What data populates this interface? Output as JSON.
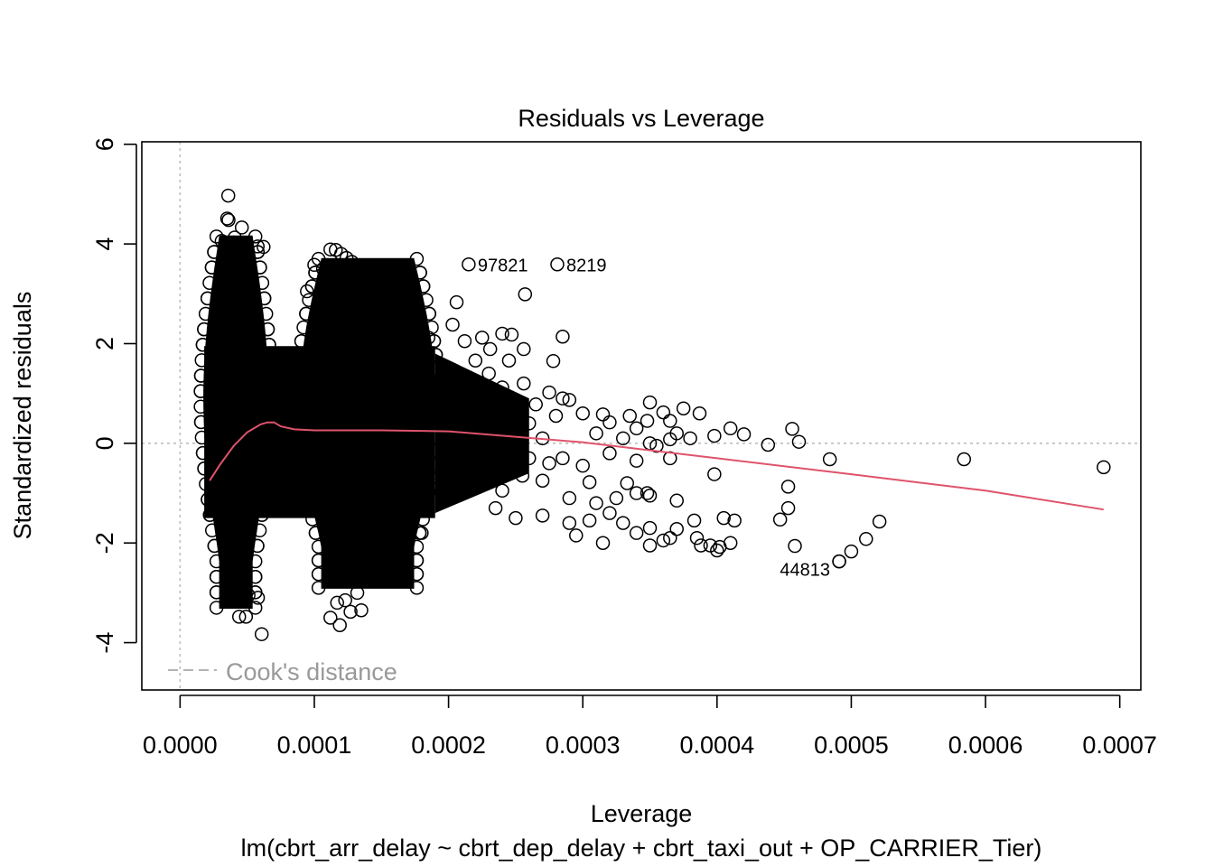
{
  "chart_data": {
    "type": "scatter",
    "title": "Residuals vs Leverage",
    "xlabel": "Leverage",
    "ylabel": "Standardized residuals",
    "subtitle": "lm(cbrt_arr_delay ~ cbrt_dep_delay + cbrt_taxi_out + OP_CARRIER_Tier)",
    "xlim": [
      -2.85e-05,
      0.0007157
    ],
    "ylim": [
      -4.95,
      6.05
    ],
    "x_ticks": [
      "0.0000",
      "0.0001",
      "0.0002",
      "0.0003",
      "0.0004",
      "0.0005",
      "0.0006",
      "0.0007"
    ],
    "x_tick_values": [
      0,
      0.0001,
      0.0002,
      0.0003,
      0.0004,
      0.0005,
      0.0006,
      0.0007
    ],
    "y_ticks": [
      "-4",
      "-2",
      "0",
      "2",
      "4",
      "6"
    ],
    "y_tick_values": [
      -4,
      -2,
      0,
      2,
      4,
      6
    ],
    "reference_lines": {
      "h": 0,
      "v": 0,
      "style": "dotted",
      "color": "#bebebe"
    },
    "legend": {
      "label": "Cook's distance",
      "position": "bottom-left",
      "line_style": "dashed",
      "color": "#999999"
    },
    "dense_clusters": [
      {
        "x_range": [
          1.8e-05,
          6.52e-05
        ],
        "y_range": [
          -3.3,
          4.15
        ]
      },
      {
        "x_range": [
          8.95e-05,
          0.00019
        ],
        "y_range": [
          -2.9,
          3.7
        ]
      }
    ],
    "points": [
      [
        3.59e-05,
        4.97
      ],
      [
        3.51e-05,
        4.51
      ],
      [
        3.61e-05,
        4.48
      ],
      [
        4.6e-05,
        4.33
      ],
      [
        4.07e-05,
        4.13
      ],
      [
        3.1e-05,
        4.06
      ],
      [
        4e-05,
        4.03
      ],
      [
        4.7e-05,
        4.0
      ],
      [
        5.78e-05,
        3.95
      ],
      [
        6.22e-05,
        3.94
      ],
      [
        0.000112,
        3.89
      ],
      [
        0.000116,
        3.88
      ],
      [
        0.00012,
        3.8
      ],
      [
        0.000124,
        3.72
      ],
      [
        0.000128,
        3.64
      ],
      [
        0.0001,
        3.58
      ],
      [
        0.0001065,
        3.5
      ],
      [
        0.000114,
        3.42
      ],
      [
        9.45e-05,
        3.05
      ],
      [
        0.000164,
        3.03
      ],
      [
        0.000136,
        2.65
      ],
      [
        0.000148,
        2.47
      ],
      [
        0.000158,
        2.28
      ],
      [
        0.00017,
        2.32
      ],
      [
        0.000185,
        2.12
      ],
      [
        0.000206,
        2.83
      ],
      [
        0.000257,
        2.99
      ],
      [
        0.000203,
        2.38
      ],
      [
        0.000212,
        2.05
      ],
      [
        0.000225,
        2.12
      ],
      [
        0.000231,
        1.89
      ],
      [
        0.00024,
        2.2
      ],
      [
        0.000247,
        2.18
      ],
      [
        0.000256,
        1.89
      ],
      [
        0.000245,
        1.66
      ],
      [
        0.00022,
        1.66
      ],
      [
        0.000285,
        2.14
      ],
      [
        0.000278,
        1.65
      ],
      [
        0.00023,
        1.4
      ],
      [
        0.00024,
        1.12
      ],
      [
        0.000256,
        1.2
      ],
      [
        0.000275,
        1.02
      ],
      [
        0.000265,
        0.78
      ],
      [
        0.000285,
        0.9
      ],
      [
        0.00029,
        0.87
      ],
      [
        0.0003,
        0.6
      ],
      [
        0.000315,
        0.58
      ],
      [
        0.00032,
        0.42
      ],
      [
        0.000335,
        0.55
      ],
      [
        0.00034,
        0.3
      ],
      [
        0.000348,
        0.45
      ],
      [
        0.00035,
        0.82
      ],
      [
        0.00036,
        0.62
      ],
      [
        0.000365,
        0.45
      ],
      [
        0.000375,
        0.7
      ],
      [
        0.00037,
        0.2
      ],
      [
        0.00038,
        0.1
      ],
      [
        0.000387,
        0.6
      ],
      [
        0.000398,
        0.15
      ],
      [
        0.00041,
        0.3
      ],
      [
        0.00042,
        0.18
      ],
      [
        0.00026,
        0.4
      ],
      [
        0.00028,
        0.55
      ],
      [
        0.00031,
        0.2
      ],
      [
        0.00033,
        0.1
      ],
      [
        0.00035,
        0.0
      ],
      [
        0.000365,
        0.08
      ],
      [
        0.000355,
        -0.05
      ],
      [
        0.00027,
        0.1
      ],
      [
        0.00026,
        -0.3
      ],
      [
        0.000275,
        -0.4
      ],
      [
        0.000285,
        -0.3
      ],
      [
        0.0003,
        -0.45
      ],
      [
        0.000305,
        -0.78
      ],
      [
        0.00032,
        -0.2
      ],
      [
        0.00034,
        -0.35
      ],
      [
        0.000365,
        -0.3
      ],
      [
        0.000333,
        -0.8
      ],
      [
        0.000348,
        -1.0
      ],
      [
        0.00024,
        -0.95
      ],
      [
        0.000255,
        -0.65
      ],
      [
        0.00027,
        -0.75
      ],
      [
        0.00029,
        -1.1
      ],
      [
        0.00031,
        -1.2
      ],
      [
        0.000325,
        -1.1
      ],
      [
        0.00034,
        -1.0
      ],
      [
        0.00035,
        -1.05
      ],
      [
        0.00037,
        -1.15
      ],
      [
        0.000398,
        -0.62
      ],
      [
        0.000438,
        -0.03
      ],
      [
        0.000456,
        0.29
      ],
      [
        0.000461,
        0.03
      ],
      [
        0.000484,
        -0.32
      ],
      [
        0.000584,
        -0.32
      ],
      [
        0.000688,
        -0.48
      ],
      [
        0.000235,
        -1.3
      ],
      [
        0.00025,
        -1.5
      ],
      [
        0.00027,
        -1.45
      ],
      [
        0.00029,
        -1.6
      ],
      [
        0.000305,
        -1.55
      ],
      [
        0.00032,
        -1.4
      ],
      [
        0.00033,
        -1.6
      ],
      [
        0.00034,
        -1.8
      ],
      [
        0.00035,
        -1.7
      ],
      [
        0.00036,
        -1.95
      ],
      [
        0.00037,
        -1.72
      ],
      [
        0.000365,
        -1.9
      ],
      [
        0.000383,
        -1.55
      ],
      [
        0.000385,
        -1.9
      ],
      [
        0.000388,
        -2.05
      ],
      [
        0.000395,
        -2.05
      ],
      [
        0.0004,
        -2.15
      ],
      [
        0.000402,
        -2.08
      ],
      [
        0.000405,
        -1.5
      ],
      [
        0.00041,
        -2.0
      ],
      [
        0.000413,
        -1.55
      ],
      [
        0.00035,
        -2.05
      ],
      [
        0.000295,
        -1.85
      ],
      [
        0.000315,
        -2.0
      ],
      [
        0.000447,
        -1.53
      ],
      [
        0.000453,
        -1.3
      ],
      [
        0.000453,
        -0.87
      ],
      [
        0.000458,
        -2.06
      ],
      [
        0.000491,
        -2.37
      ],
      [
        0.0005,
        -2.17
      ],
      [
        0.000511,
        -1.92
      ],
      [
        0.000521,
        -1.57
      ],
      [
        6.08e-05,
        -3.83
      ],
      [
        4.4e-05,
        -3.48
      ],
      [
        4.91e-05,
        -3.48
      ],
      [
        0.000112,
        -3.5
      ],
      [
        0.000119,
        -3.65
      ],
      [
        0.000127,
        -3.38
      ],
      [
        0.000117,
        -3.2
      ],
      [
        0.000123,
        -3.15
      ],
      [
        0.000135,
        -3.35
      ],
      [
        5.8e-05,
        -3.1
      ],
      [
        5.1e-05,
        -3.05
      ],
      [
        0.000132,
        -3.0
      ],
      [
        0.00014,
        -2.75
      ],
      [
        0.00015,
        -2.2
      ],
      [
        0.00016,
        -2.0
      ],
      [
        0.00018,
        -1.8
      ],
      [
        0.00015,
        -1.85
      ],
      [
        0.00017,
        -1.55
      ]
    ],
    "smoother": {
      "color": "#df536b",
      "x": [
        2.2e-05,
        3e-05,
        4e-05,
        5e-05,
        6e-05,
        6.5e-05,
        7e-05,
        7.5e-05,
        8.5e-05,
        0.0001,
        0.00012,
        0.00015,
        0.00018,
        0.0002,
        0.0003,
        0.0004,
        0.0005,
        0.0006,
        0.000688
      ],
      "y": [
        -0.75,
        -0.42,
        -0.05,
        0.22,
        0.38,
        0.42,
        0.42,
        0.34,
        0.28,
        0.26,
        0.26,
        0.26,
        0.25,
        0.24,
        0.02,
        -0.3,
        -0.62,
        -0.95,
        -1.33
      ]
    },
    "labelled_points": [
      {
        "label": "97821",
        "x": 0.000215,
        "y": 3.59,
        "side": "right"
      },
      {
        "label": "8219",
        "x": 0.000281,
        "y": 3.59,
        "side": "right"
      },
      {
        "label": "44813",
        "x": 0.000491,
        "y": -2.37,
        "side": "left"
      }
    ]
  }
}
